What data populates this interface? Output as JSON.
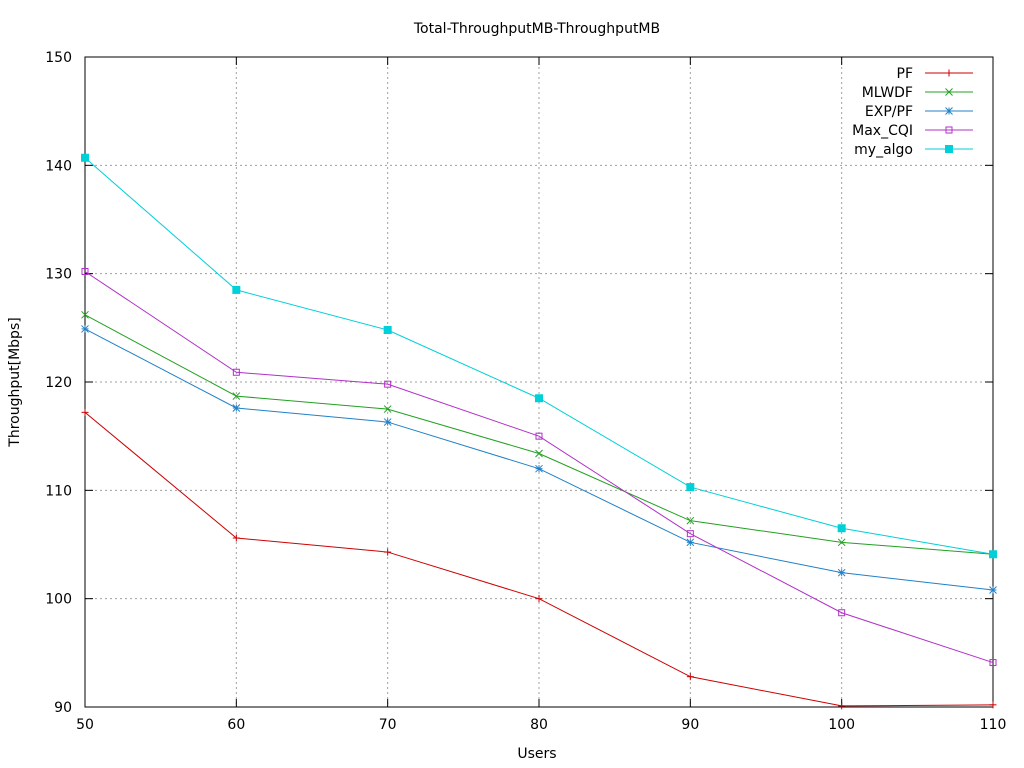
{
  "chart_data": {
    "type": "line",
    "title": "Total-ThroughputMB-ThroughputMB",
    "xlabel": "Users",
    "ylabel": "Throughput[Mbps]",
    "xlim": [
      50,
      110
    ],
    "ylim": [
      90,
      150
    ],
    "x": [
      50,
      60,
      70,
      80,
      90,
      100,
      110
    ],
    "x_ticks": [
      "50",
      "60",
      "70",
      "80",
      "90",
      "100",
      "110"
    ],
    "y_ticks": [
      "90",
      "100",
      "110",
      "120",
      "130",
      "140",
      "150"
    ],
    "grid": true,
    "legend_position": "top-right",
    "series": [
      {
        "name": "PF",
        "color": "#cc0000",
        "marker": "plus",
        "values": [
          117.2,
          105.6,
          104.3,
          100.0,
          92.8,
          90.1,
          90.2
        ]
      },
      {
        "name": "MLWDF",
        "color": "#22a022",
        "marker": "cross",
        "values": [
          126.2,
          118.7,
          117.5,
          113.4,
          107.2,
          105.2,
          104.1
        ]
      },
      {
        "name": "EXP/PF",
        "color": "#2080c8",
        "marker": "asterisk",
        "values": [
          124.9,
          117.6,
          116.3,
          112.0,
          105.2,
          102.4,
          100.8
        ]
      },
      {
        "name": "Max_CQI",
        "color": "#b030c8",
        "marker": "open-square",
        "values": [
          130.2,
          120.9,
          119.8,
          115.0,
          106.0,
          98.7,
          94.1
        ]
      },
      {
        "name": "my_algo",
        "color": "#00d0d8",
        "marker": "filled-square",
        "values": [
          140.7,
          128.5,
          124.8,
          118.5,
          110.3,
          106.5,
          104.1
        ]
      }
    ]
  }
}
